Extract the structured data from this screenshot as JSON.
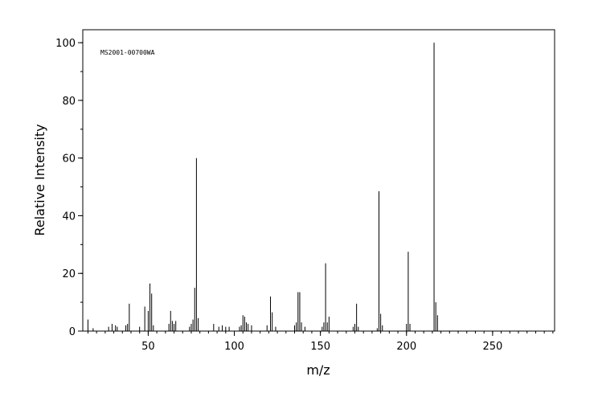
{
  "chart_data": {
    "type": "stick",
    "annotation": "MS2001-00700WA",
    "x_label": "m/z",
    "y_label": "Relative Intensity",
    "color": "#000000",
    "xlim": [
      12,
      286
    ],
    "ylim": [
      0,
      104.5
    ],
    "xticks": [
      50,
      100,
      150,
      200,
      250
    ],
    "yticks": [
      0,
      20,
      40,
      60,
      80,
      100
    ],
    "minor_ticks": true,
    "x": [
      15,
      18,
      27,
      29,
      31,
      32,
      37,
      38,
      39,
      45,
      48,
      50,
      51,
      52,
      53,
      62,
      63,
      64,
      65,
      66,
      74,
      75,
      76,
      77,
      78,
      79,
      88,
      91,
      93,
      95,
      97,
      103,
      104,
      105,
      106,
      107,
      108,
      110,
      119,
      121,
      122,
      124,
      135,
      136,
      137,
      138,
      139,
      141,
      151,
      152,
      153,
      154,
      155,
      169,
      170,
      171,
      172,
      183,
      184,
      185,
      186,
      200,
      201,
      202,
      216,
      217,
      218
    ],
    "values": [
      4,
      1,
      1.5,
      2.5,
      2,
      1.5,
      2,
      2.5,
      9.5,
      1.5,
      8.5,
      7,
      16.5,
      13,
      2,
      2.5,
      7,
      3.5,
      2.5,
      3.5,
      1.5,
      2.5,
      4,
      15,
      60,
      4.5,
      2.5,
      1.5,
      2,
      1.5,
      1.5,
      1.5,
      2,
      5.5,
      5,
      3,
      2.5,
      2,
      2,
      12,
      6.5,
      1.5,
      2,
      3,
      13.5,
      13.5,
      3,
      1.5,
      1.5,
      3,
      23.5,
      3,
      5,
      1.5,
      2.5,
      9.5,
      1.5,
      1,
      48.5,
      6,
      2,
      2.5,
      27.5,
      2.5,
      100,
      10,
      5.5
    ]
  }
}
